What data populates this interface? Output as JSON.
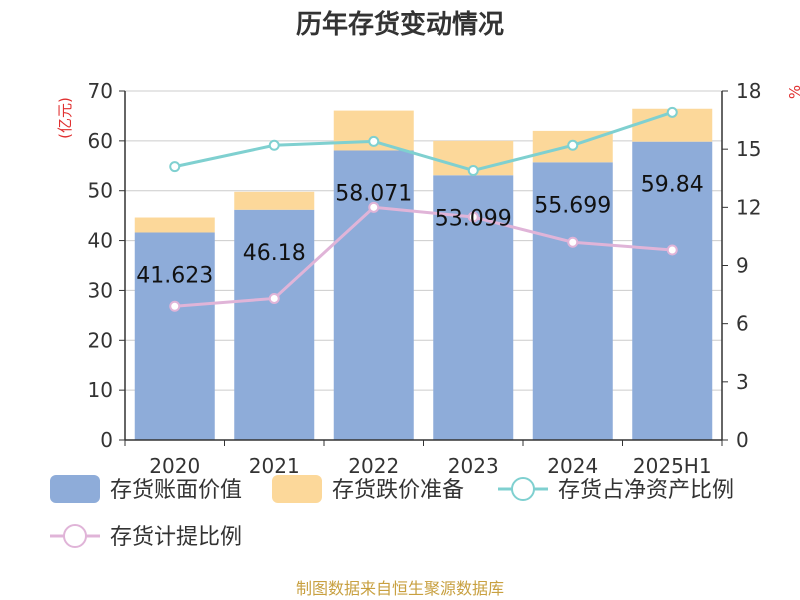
{
  "title": "历年存货变动情况",
  "source": "制图数据来自恒生聚源数据库",
  "chart_data": {
    "type": "bar",
    "categories": [
      "2020",
      "2021",
      "2022",
      "2023",
      "2024",
      "2025H1"
    ],
    "left_axis": {
      "unit": "(亿元)",
      "ylim": [
        0,
        70
      ],
      "ticks": [
        0,
        10,
        20,
        30,
        40,
        50,
        60,
        70
      ]
    },
    "right_axis": {
      "unit": "%",
      "ylim": [
        0,
        18
      ],
      "ticks": [
        0,
        3,
        6,
        9,
        12,
        15,
        18
      ]
    },
    "grid": true,
    "legend_position": "bottom",
    "series": [
      {
        "name": "存货账面价值",
        "kind": "bar",
        "axis": "left",
        "color": "#8eacd9",
        "values": [
          41.623,
          46.18,
          58.071,
          53.099,
          55.699,
          59.84
        ],
        "labels": [
          "41.623",
          "46.18",
          "58.071",
          "53.099",
          "55.699",
          "59.84"
        ]
      },
      {
        "name": "存货跌价准备",
        "kind": "bar-stacked",
        "axis": "left",
        "color": "#fcd89a",
        "values": [
          3.0,
          3.6,
          8.0,
          6.9,
          6.3,
          6.6
        ]
      },
      {
        "name": "存货占净资产比例",
        "kind": "line",
        "axis": "right",
        "color": "#7fd0d0",
        "values": [
          14.1,
          15.2,
          15.4,
          13.9,
          15.2,
          16.9
        ]
      },
      {
        "name": "存货计提比例",
        "kind": "line",
        "axis": "right",
        "color": "#e0b4d8",
        "values": [
          6.9,
          7.3,
          12.0,
          11.5,
          10.2,
          9.8
        ]
      }
    ]
  }
}
